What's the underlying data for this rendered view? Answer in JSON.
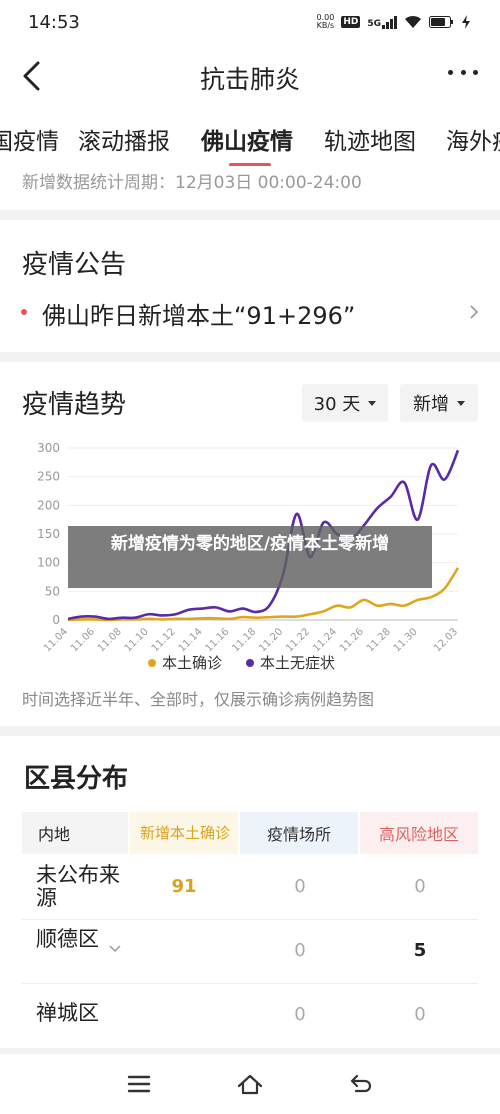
{
  "status_bar": {
    "time": "14:53",
    "net_speed_value": "0.00",
    "net_speed_unit": "KB/s",
    "hd_badge": "HD",
    "network_label": "5G"
  },
  "header": {
    "title": "抗击肺炎",
    "back_icon": "back-arrow-icon",
    "more_icon": "more-dots-icon"
  },
  "tabs": [
    {
      "label": "国疫情",
      "active": false
    },
    {
      "label": "滚动播报",
      "active": false
    },
    {
      "label": "佛山疫情",
      "active": true
    },
    {
      "label": "轨迹地图",
      "active": false
    },
    {
      "label": "海外疫",
      "active": false
    }
  ],
  "period": {
    "text": "新增数据统计周期：12月03日 00:00-24:00"
  },
  "notice": {
    "title": "疫情公告",
    "item": "佛山昨日新增本土“91+296”"
  },
  "trend": {
    "title": "疫情趋势",
    "range_select": "30 天",
    "type_select": "新增",
    "overlay_text": "新增疫情为零的地区/疫情本土零新增",
    "footer_note": "时间选择近半年、全部时，仅展示确诊病例趋势图"
  },
  "chart_data": {
    "type": "line",
    "x": [
      "11.04",
      "11.05",
      "11.06",
      "11.07",
      "11.08",
      "11.09",
      "11.10",
      "11.11",
      "11.12",
      "11.13",
      "11.14",
      "11.15",
      "11.16",
      "11.17",
      "11.18",
      "11.19",
      "11.20",
      "11.21",
      "11.22",
      "11.23",
      "11.24",
      "11.25",
      "11.26",
      "11.27",
      "11.28",
      "11.29",
      "11.30",
      "12.01",
      "12.02",
      "12.03"
    ],
    "x_tick_labels": [
      "11.04",
      "11.06",
      "11.08",
      "11.10",
      "11.12",
      "11.14",
      "11.16",
      "11.18",
      "11.20",
      "11.22",
      "11.24",
      "11.26",
      "11.28",
      "11.30",
      "12.03"
    ],
    "ylim": [
      0,
      300
    ],
    "yticks": [
      0,
      50,
      100,
      150,
      200,
      250,
      300
    ],
    "grid": true,
    "legend_position": "bottom",
    "series": [
      {
        "name": "本土确诊",
        "color": "#e0a51e",
        "values": [
          0,
          1,
          1,
          0,
          1,
          1,
          2,
          1,
          2,
          2,
          3,
          3,
          2,
          5,
          4,
          5,
          6,
          6,
          10,
          15,
          25,
          22,
          35,
          25,
          28,
          25,
          35,
          40,
          55,
          91
        ]
      },
      {
        "name": "本土无症状",
        "color": "#5b2aa6",
        "values": [
          2,
          6,
          6,
          2,
          4,
          4,
          10,
          8,
          10,
          18,
          20,
          22,
          15,
          20,
          14,
          26,
          80,
          185,
          110,
          170,
          150,
          140,
          165,
          195,
          215,
          240,
          175,
          270,
          245,
          296
        ]
      }
    ]
  },
  "district": {
    "title": "区县分布",
    "headers": [
      "内地",
      "新增本土确诊",
      "疫情场所",
      "高风险地区"
    ],
    "rows": [
      {
        "name": "未公布来源",
        "confirmed": "91",
        "places": "0",
        "high_risk": "0",
        "expandable": false
      },
      {
        "name": "顺德区",
        "confirmed": "",
        "places": "0",
        "high_risk": "5",
        "expandable": true
      },
      {
        "name": "禅城区",
        "confirmed": "",
        "places": "0",
        "high_risk": "0",
        "expandable": false
      }
    ]
  },
  "bottom_nav": {
    "icons": [
      "menu-icon",
      "home-icon",
      "back-icon"
    ]
  },
  "colors": {
    "accent_red": "#e8545e",
    "confirmed_yellow": "#e0a51e",
    "asymptomatic_purple": "#5b2aa6",
    "high_risk_red": "#e06060"
  }
}
